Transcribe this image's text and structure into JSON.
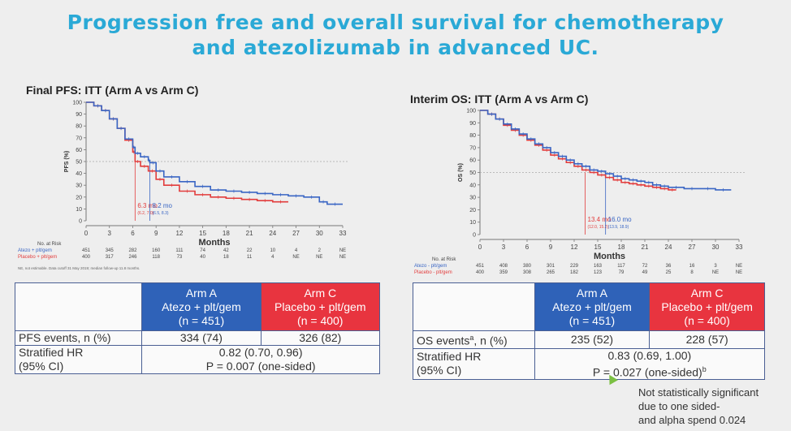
{
  "title": {
    "line1": "Progression free and overall survival for chemotherapy",
    "line2": "and atezolizumab in advanced UC."
  },
  "colors": {
    "arm_a": "#2f62b8",
    "arm_c": "#e8343f",
    "km_atezo": "#3a66c4",
    "km_placebo": "#e23c3c",
    "title": "#2aa9d6"
  },
  "chart_data": [
    {
      "type": "line",
      "title": "Final PFS: ITT (Arm A vs Arm C)",
      "xlabel": "Months",
      "ylabel": "PFS (%)",
      "xlim": [
        0,
        33
      ],
      "ylim": [
        0,
        100
      ],
      "xticks": [
        0,
        3,
        6,
        9,
        12,
        15,
        18,
        21,
        24,
        27,
        30,
        33
      ],
      "yticks": [
        0,
        10,
        20,
        30,
        40,
        50,
        60,
        70,
        80,
        90,
        100
      ],
      "reference_y": 50,
      "series": [
        {
          "name": "Atezo + plt/gem",
          "x": [
            0,
            1,
            2,
            3,
            4,
            5,
            6,
            6.3,
            7,
            8,
            8.2,
            9,
            10,
            12,
            14,
            16,
            18,
            20,
            22,
            24,
            26,
            28,
            30,
            31,
            33
          ],
          "y": [
            100,
            97,
            93,
            86,
            78,
            69,
            62,
            57,
            54,
            51,
            49,
            42,
            37,
            33,
            29,
            26,
            25,
            24,
            23,
            22,
            21,
            20,
            16,
            14,
            14
          ]
        },
        {
          "name": "Placebo + plt/gem",
          "x": [
            0,
            1,
            2,
            3,
            4,
            5,
            6,
            6.3,
            7,
            8,
            9,
            10,
            12,
            14,
            16,
            18,
            20,
            22,
            24,
            26
          ],
          "y": [
            100,
            97,
            93,
            86,
            78,
            68,
            58,
            50,
            46,
            42,
            35,
            30,
            25,
            22,
            20,
            19,
            18,
            17,
            16,
            16
          ]
        }
      ],
      "medians": [
        {
          "series": "Placebo + plt/gem",
          "x": 6.3,
          "label": "6.3 mo",
          "ci": "(6.2, 7.0)"
        },
        {
          "series": "Atezo + plt/gem",
          "x": 8.2,
          "label": "8.2 mo",
          "ci": "(6.5, 8.3)"
        }
      ],
      "risk_table": {
        "header": "No. at Risk",
        "rows": [
          {
            "label": "Atezo + plt/gem",
            "values": [
              "451",
              "345",
              "282",
              "160",
              "111",
              "74",
              "42",
              "22",
              "10",
              "4",
              "2",
              "NE"
            ]
          },
          {
            "label": "Placebo + plt/gem",
            "values": [
              "400",
              "317",
              "246",
              "118",
              "73",
              "40",
              "18",
              "11",
              "4",
              "NE",
              "NE",
              "NE"
            ]
          }
        ]
      },
      "footnote": "NE, not estimable. Data cutoff 31 May 2019; median follow-up 11.8 months."
    },
    {
      "type": "line",
      "title": "Interim OS: ITT (Arm A vs Arm C)",
      "xlabel": "Months",
      "ylabel": "OS (%)",
      "xlim": [
        0,
        33
      ],
      "ylim": [
        0,
        100
      ],
      "xticks": [
        0,
        3,
        6,
        9,
        12,
        15,
        18,
        21,
        24,
        27,
        30,
        33
      ],
      "yticks": [
        0,
        10,
        20,
        30,
        40,
        50,
        60,
        70,
        80,
        90,
        100
      ],
      "reference_y": 50,
      "series": [
        {
          "name": "Atezo - plt/gem",
          "x": [
            0,
            1,
            2,
            3,
            4,
            5,
            6,
            7,
            8,
            9,
            10,
            11,
            12,
            13,
            14,
            15,
            16,
            17,
            18,
            19,
            20,
            21,
            22,
            23,
            24,
            26,
            28,
            30,
            32
          ],
          "y": [
            100,
            97,
            93,
            89,
            85,
            81,
            77,
            73,
            70,
            66,
            63,
            60,
            57,
            55,
            52,
            51,
            49,
            47,
            45,
            44,
            43,
            42,
            40,
            39,
            38,
            37,
            37,
            36,
            36
          ]
        },
        {
          "name": "Placebo - plt/gem",
          "x": [
            0,
            1,
            2,
            3,
            4,
            5,
            6,
            7,
            8,
            9,
            10,
            11,
            12,
            13,
            14,
            15,
            16,
            17,
            18,
            19,
            20,
            21,
            22,
            23,
            24,
            25
          ],
          "y": [
            100,
            97,
            93,
            88,
            84,
            80,
            76,
            72,
            68,
            64,
            61,
            58,
            55,
            52,
            50,
            48,
            46,
            44,
            42,
            41,
            40,
            39,
            38,
            37,
            36,
            36
          ]
        }
      ],
      "medians": [
        {
          "series": "Placebo - plt/gem",
          "x": 13.4,
          "label": "13.4 mo",
          "ci": "(12.0, 15.2)"
        },
        {
          "series": "Atezo - plt/gem",
          "x": 16.0,
          "label": "16.0 mo",
          "ci": "(13.9, 18.9)"
        }
      ],
      "risk_table": {
        "header": "No. at Risk",
        "rows": [
          {
            "label": "Atezo - plt/gem",
            "values": [
              "451",
              "408",
              "380",
              "301",
              "229",
              "163",
              "117",
              "72",
              "36",
              "16",
              "3",
              "NE"
            ]
          },
          {
            "label": "Placebo - plt/gem",
            "values": [
              "400",
              "359",
              "308",
              "265",
              "182",
              "123",
              "79",
              "49",
              "25",
              "8",
              "NE",
              "NE"
            ]
          }
        ]
      }
    }
  ],
  "pfs_table": {
    "arm_a": {
      "line1": "Arm A",
      "line2": "Atezo + plt/gem",
      "line3": "(n = 451)"
    },
    "arm_c": {
      "line1": "Arm C",
      "line2": "Placebo + plt/gem",
      "line3": "(n = 400)"
    },
    "events_label": "PFS events, n (%)",
    "events_a": "334 (74)",
    "events_c": "326 (82)",
    "hr_label_1": "Stratified HR",
    "hr_label_2": "(95% CI)",
    "hr_value": "0.82 (0.70, 0.96)",
    "p_value": "P = 0.007 (one-sided)"
  },
  "os_table": {
    "arm_a": {
      "line1": "Arm A",
      "line2": "Atezo + plt/gem",
      "line3": "(n = 451)"
    },
    "arm_c": {
      "line1": "Arm C",
      "line2": "Placebo + plt/gem",
      "line3": "(n = 400)"
    },
    "events_label": "OS events",
    "events_sup": "a",
    "events_label_tail": ", n (%)",
    "events_a": "235 (52)",
    "events_c": "228 (57)",
    "hr_label_1": "Stratified HR",
    "hr_label_2": "(95% CI)",
    "hr_value": "0.83 (0.69, 1.00)",
    "p_value": "P = 0.027 (one-sided)",
    "p_sup": "b"
  },
  "note": {
    "line1": "Not statistically significant",
    "line2": "due to one sided-",
    "line3": "and alpha spend 0.024"
  }
}
